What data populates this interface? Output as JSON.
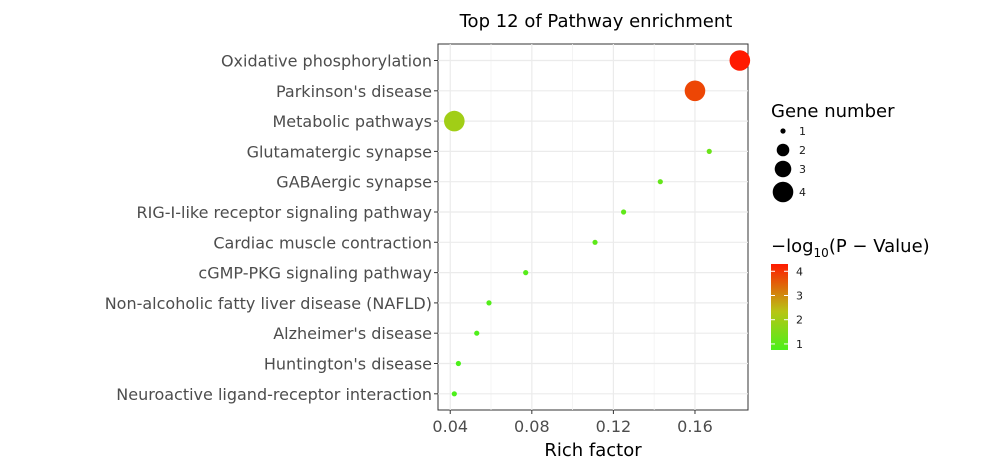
{
  "chart_data": {
    "type": "scatter",
    "title": "Top 12 of Pathway enrichment",
    "xlabel": "Rich factor",
    "ylabel": "",
    "xlim": [
      0.034,
      0.186
    ],
    "x_ticks": [
      0.04,
      0.08,
      0.12,
      0.16
    ],
    "x_tick_labels": [
      "0.04",
      "0.08",
      "0.12",
      "0.16"
    ],
    "grid": true,
    "categories": [
      "Oxidative phosphorylation",
      "Parkinson's disease",
      "Metabolic pathways",
      "Glutamatergic synapse",
      "GABAergic synapse",
      "RIG-I-like receptor signaling pathway",
      "Cardiac muscle contraction",
      "cGMP-PKG signaling pathway",
      "Non-alcoholic fatty liver disease (NAFLD)",
      "Alzheimer's disease",
      "Huntington's disease",
      "Neuroactive ligand-receptor interaction"
    ],
    "points": [
      {
        "category": "Oxidative phosphorylation",
        "rich_factor": 0.182,
        "gene_number": 4,
        "neg_log10_p": 4.3
      },
      {
        "category": "Parkinson's disease",
        "rich_factor": 0.16,
        "gene_number": 4,
        "neg_log10_p": 3.8
      },
      {
        "category": "Metabolic pathways",
        "rich_factor": 0.042,
        "gene_number": 4,
        "neg_log10_p": 2.0
      },
      {
        "category": "Glutamatergic synapse",
        "rich_factor": 0.167,
        "gene_number": 1,
        "neg_log10_p": 1.2
      },
      {
        "category": "GABAergic synapse",
        "rich_factor": 0.143,
        "gene_number": 1,
        "neg_log10_p": 1.1
      },
      {
        "category": "RIG-I-like receptor signaling pathway",
        "rich_factor": 0.125,
        "gene_number": 1,
        "neg_log10_p": 1.05
      },
      {
        "category": "Cardiac muscle contraction",
        "rich_factor": 0.111,
        "gene_number": 1,
        "neg_log10_p": 1.0
      },
      {
        "category": "cGMP-PKG signaling pathway",
        "rich_factor": 0.077,
        "gene_number": 1,
        "neg_log10_p": 0.9
      },
      {
        "category": "Non-alcoholic fatty liver disease (NAFLD)",
        "rich_factor": 0.059,
        "gene_number": 1,
        "neg_log10_p": 0.85
      },
      {
        "category": "Alzheimer's disease",
        "rich_factor": 0.053,
        "gene_number": 1,
        "neg_log10_p": 0.8
      },
      {
        "category": "Huntington's disease",
        "rich_factor": 0.044,
        "gene_number": 1,
        "neg_log10_p": 0.75
      },
      {
        "category": "Neuroactive ligand-receptor interaction",
        "rich_factor": 0.042,
        "gene_number": 1,
        "neg_log10_p": 0.75
      }
    ],
    "size_legend": {
      "title": "Gene number",
      "values": [
        1,
        2,
        3,
        4
      ],
      "labels": [
        "1",
        "2",
        "3",
        "4"
      ]
    },
    "color_legend": {
      "title_main": "−log",
      "title_sub": "10",
      "title_rest": "(P − Value)",
      "range": [
        0.75,
        4.3
      ],
      "ticks": [
        1,
        2,
        3,
        4
      ],
      "tick_labels": [
        "1",
        "2",
        "3",
        "4"
      ],
      "low_color": "#4cf01a",
      "mid_color": "#b8c415",
      "high_color": "#ff1a00"
    },
    "legend_position": "right"
  }
}
